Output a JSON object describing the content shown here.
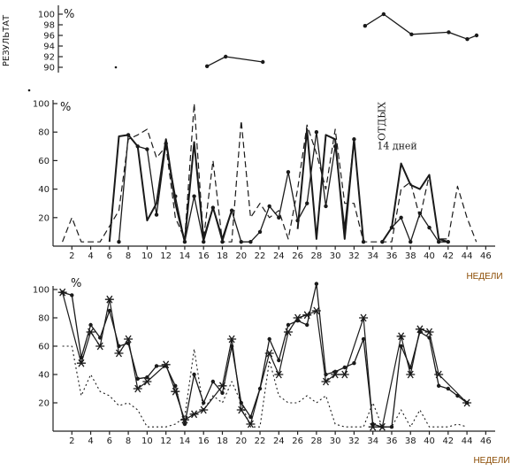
{
  "colors": {
    "ink": "#1a1a1a",
    "xlabel": "#8a4a00"
  },
  "chart_data": [
    {
      "type": "line",
      "ylabel": "РЕЗУЛЬТАТ",
      "unit": "%",
      "ylim": [
        89,
        101
      ],
      "xlim": [
        0,
        47
      ],
      "yticks": [
        90,
        92,
        94,
        96,
        98,
        100
      ],
      "series": [
        {
          "style": "solid-dots",
          "x": [
            16,
            18,
            22,
            33,
            35,
            38,
            42,
            44,
            45
          ],
          "y": [
            90.2,
            92.0,
            91.0,
            97.8,
            100.0,
            96.2,
            96.6,
            95.3,
            96.0
          ],
          "segments": [
            [
              0,
              2
            ],
            [
              3,
              8
            ]
          ]
        }
      ]
    },
    {
      "type": "line",
      "unit": "%",
      "ylim": [
        0,
        100
      ],
      "xlim": [
        0,
        47
      ],
      "yticks": [
        20,
        40,
        60,
        80,
        100
      ],
      "xticks": [
        2,
        4,
        6,
        8,
        10,
        12,
        14,
        16,
        18,
        20,
        22,
        24,
        26,
        28,
        30,
        32,
        34,
        36,
        38,
        40,
        42,
        44,
        46
      ],
      "xlabel": "НЕДЕЛИ",
      "annotations": [
        {
          "text": "ОТДЫХ",
          "x": 35,
          "y": 95,
          "vertical": true
        },
        {
          "text": "14 дней",
          "x": 35,
          "y": 68
        }
      ],
      "series": [
        {
          "style": "solid-thick",
          "x": [
            6,
            7,
            8,
            9,
            10,
            11,
            12,
            13,
            14,
            15,
            16,
            17,
            18,
            19,
            26,
            27,
            28,
            29,
            30,
            31,
            32,
            33,
            35,
            36,
            37,
            38,
            39,
            40,
            41,
            42
          ],
          "y": [
            3,
            77,
            78,
            70,
            18,
            30,
            75,
            30,
            3,
            73,
            5,
            27,
            5,
            25,
            12,
            82,
            5,
            78,
            75,
            5,
            75,
            3,
            3,
            13,
            58,
            43,
            40,
            50,
            5,
            3
          ],
          "segments": [
            [
              0,
              13
            ],
            [
              14,
              21
            ],
            [
              22,
              29
            ]
          ]
        },
        {
          "style": "solid-dots",
          "x": [
            7,
            8,
            9,
            10,
            11,
            12,
            13,
            14,
            15,
            16,
            17,
            18,
            19,
            20,
            21,
            22,
            23,
            24,
            25,
            26,
            27,
            28,
            29,
            30,
            31,
            32,
            33,
            35,
            36,
            37,
            38,
            39,
            40,
            41,
            42
          ],
          "y": [
            3,
            78,
            70,
            68,
            22,
            72,
            35,
            3,
            35,
            3,
            27,
            3,
            25,
            3,
            3,
            10,
            28,
            20,
            52,
            18,
            30,
            80,
            28,
            70,
            13,
            75,
            3,
            3,
            13,
            20,
            3,
            23,
            13,
            3,
            3
          ],
          "segments": [
            [
              0,
              26
            ],
            [
              27,
              34
            ]
          ]
        },
        {
          "style": "dashed",
          "x": [
            1,
            2,
            3,
            5,
            7,
            8,
            9,
            10,
            11,
            12,
            13,
            14,
            15,
            16,
            17,
            18,
            19,
            20,
            21,
            22,
            23,
            24,
            25,
            26,
            27,
            28,
            29,
            30,
            31,
            32,
            33,
            34,
            36,
            37,
            38,
            39,
            40,
            41,
            42,
            43,
            44,
            45
          ],
          "y": [
            3,
            20,
            3,
            3,
            25,
            75,
            78,
            82,
            62,
            70,
            20,
            5,
            100,
            5,
            60,
            3,
            3,
            88,
            20,
            30,
            20,
            25,
            5,
            40,
            85,
            65,
            40,
            82,
            30,
            30,
            3,
            3,
            3,
            40,
            45,
            20,
            50,
            5,
            5,
            42,
            20,
            3
          ],
          "segments": [
            [
              0,
              41
            ]
          ]
        }
      ]
    },
    {
      "type": "line",
      "unit": "%",
      "ylim": [
        0,
        100
      ],
      "xlim": [
        0,
        47
      ],
      "yticks": [
        20,
        40,
        60,
        80,
        100
      ],
      "xticks": [
        2,
        4,
        6,
        8,
        10,
        12,
        14,
        16,
        18,
        20,
        22,
        24,
        26,
        28,
        30,
        32,
        34,
        36,
        38,
        40,
        42,
        44,
        46
      ],
      "xlabel": "НЕДЕЛИ",
      "series": [
        {
          "style": "solid-dots",
          "marker": "dot",
          "x": [
            1,
            2,
            3,
            4,
            5,
            6,
            7,
            8,
            9,
            10,
            11,
            12,
            13,
            14,
            15,
            16,
            17,
            18,
            19,
            20,
            21,
            22,
            23,
            24,
            25,
            26,
            27,
            28,
            29,
            30,
            31,
            32,
            33,
            34,
            35,
            36,
            37,
            38,
            39,
            40,
            41,
            42,
            43,
            44
          ],
          "y": [
            98,
            96,
            52,
            75,
            66,
            85,
            60,
            62,
            37,
            38,
            46,
            46,
            32,
            5,
            40,
            20,
            35,
            27,
            60,
            20,
            10,
            30,
            65,
            50,
            75,
            78,
            75,
            104,
            40,
            42,
            45,
            48,
            65,
            5,
            3,
            3,
            60,
            45,
            70,
            66,
            32,
            30,
            25,
            20
          ],
          "segments": [
            [
              0,
              43
            ]
          ]
        },
        {
          "style": "solid",
          "marker": "asterisk",
          "x": [
            1,
            3,
            4,
            5,
            6,
            7,
            8,
            9,
            10,
            12,
            13,
            14,
            15,
            16,
            18,
            19,
            20,
            21,
            23,
            24,
            25,
            26,
            27,
            28,
            29,
            30,
            31,
            33,
            34,
            35,
            37,
            38,
            39,
            40,
            41,
            44
          ],
          "y": [
            98,
            48,
            70,
            60,
            93,
            55,
            65,
            30,
            35,
            47,
            28,
            8,
            12,
            15,
            32,
            65,
            15,
            5,
            55,
            40,
            70,
            80,
            82,
            85,
            35,
            40,
            40,
            80,
            3,
            3,
            67,
            40,
            72,
            70,
            40,
            20
          ],
          "segments": [
            [
              0,
              35
            ]
          ]
        },
        {
          "style": "dotted",
          "x": [
            1,
            2,
            3,
            4,
            5,
            6,
            7,
            8,
            9,
            10,
            11,
            12,
            13,
            14,
            15,
            16,
            17,
            18,
            19,
            20,
            21,
            22,
            23,
            24,
            25,
            26,
            27,
            28,
            29,
            30,
            31,
            32,
            33,
            34,
            35,
            36,
            37,
            38,
            39,
            40,
            41,
            42,
            43,
            44
          ],
          "y": [
            60,
            60,
            25,
            40,
            28,
            25,
            18,
            20,
            15,
            3,
            3,
            3,
            5,
            10,
            58,
            15,
            25,
            20,
            35,
            20,
            3,
            3,
            50,
            25,
            20,
            20,
            25,
            20,
            25,
            5,
            3,
            3,
            3,
            20,
            3,
            3,
            15,
            3,
            15,
            3,
            3,
            3,
            5,
            3
          ],
          "segments": [
            [
              0,
              43
            ]
          ]
        }
      ]
    }
  ]
}
